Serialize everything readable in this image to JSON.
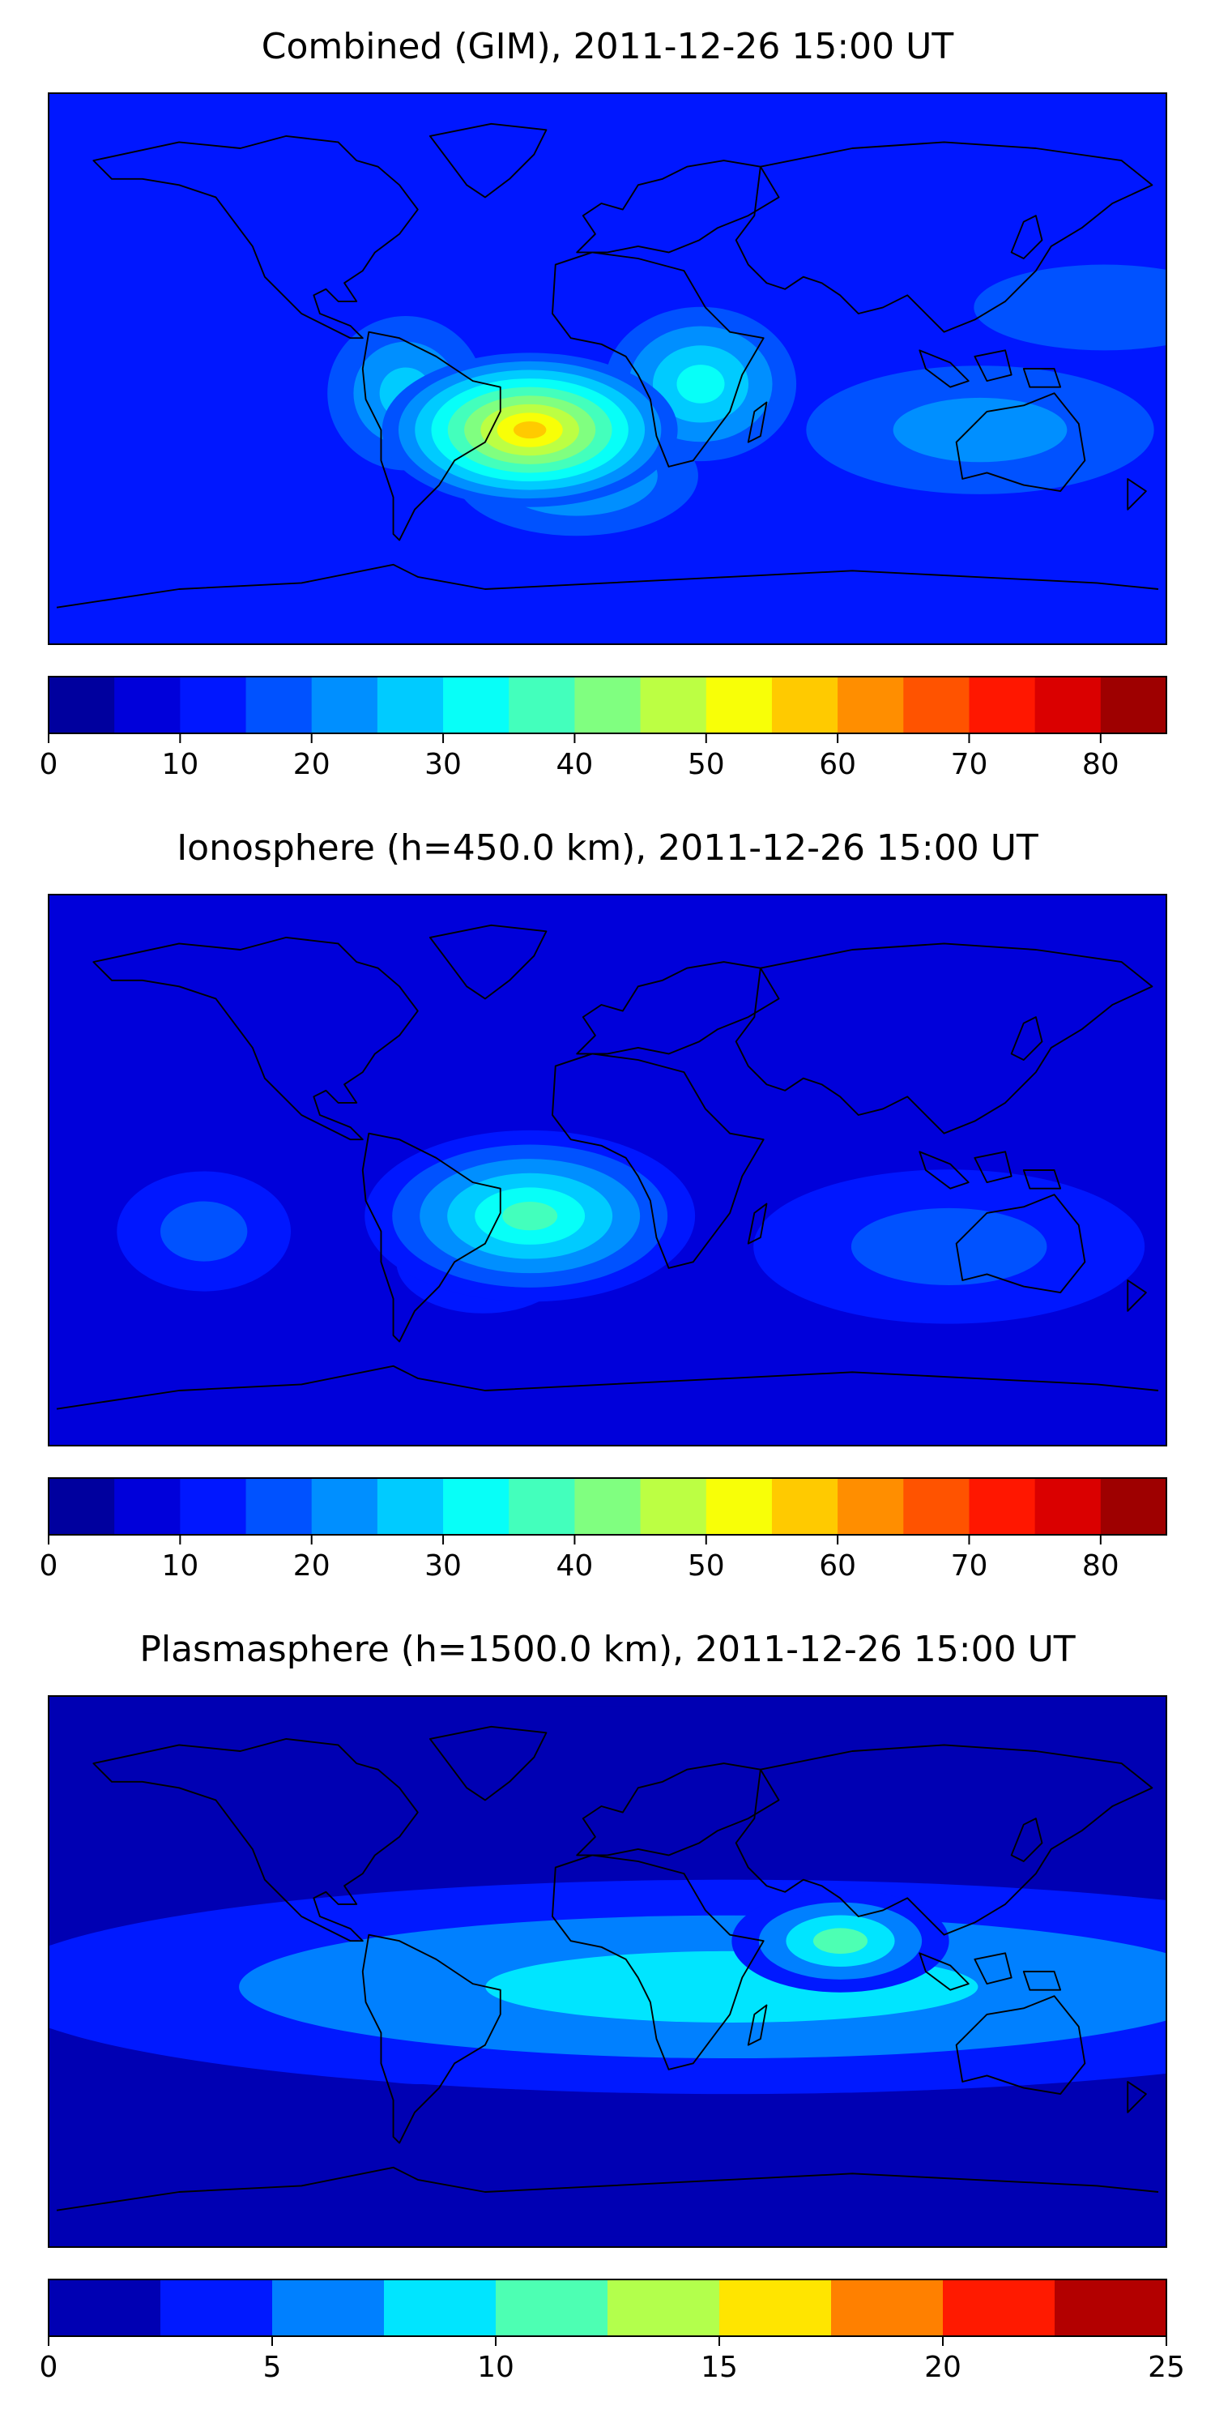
{
  "chart_data": [
    {
      "type": "heatmap",
      "title": "Combined (GIM), 2011-12-26 15:00 UT",
      "map": "world",
      "colormap": "jet",
      "colorbar": {
        "min": 0,
        "max": 85,
        "step": 5,
        "tick_labels": [
          "0",
          "10",
          "20",
          "30",
          "40",
          "50",
          "60",
          "70",
          "80"
        ]
      },
      "features": [
        {
          "lon": -25,
          "lat": -20,
          "sx": 34,
          "sy": 18,
          "value": 46
        },
        {
          "lon": -10,
          "lat": -35,
          "sx": 28,
          "sy": 14,
          "value": 14
        },
        {
          "lon": -65,
          "lat": -8,
          "sx": 18,
          "sy": 18,
          "value": 14
        },
        {
          "lon": 30,
          "lat": -5,
          "sx": 22,
          "sy": 18,
          "value": 18
        },
        {
          "lon": 120,
          "lat": -20,
          "sx": 40,
          "sy": 15,
          "value": 8
        },
        {
          "lon": 160,
          "lat": 20,
          "sx": 30,
          "sy": 10,
          "value": 6
        }
      ],
      "background_value": 11
    },
    {
      "type": "heatmap",
      "title": "Ionosphere  (h=450.0 km), 2011-12-26 15:00 UT",
      "map": "world",
      "colormap": "jet",
      "colorbar": {
        "min": 0,
        "max": 85,
        "step": 5,
        "tick_labels": [
          "0",
          "10",
          "20",
          "30",
          "40",
          "50",
          "60",
          "70",
          "80"
        ]
      },
      "features": [
        {
          "lon": -25,
          "lat": -15,
          "sx": 38,
          "sy": 20,
          "value": 30
        },
        {
          "lon": -5,
          "lat": -20,
          "sx": 14,
          "sy": 10,
          "value": 14
        },
        {
          "lon": -40,
          "lat": -30,
          "sx": 20,
          "sy": 12,
          "value": 6
        },
        {
          "lon": 110,
          "lat": -25,
          "sx": 45,
          "sy": 18,
          "value": 10
        },
        {
          "lon": -130,
          "lat": -20,
          "sx": 20,
          "sy": 14,
          "value": 8
        }
      ],
      "background_value": 7
    },
    {
      "type": "heatmap",
      "title": "Plasmasphere (h=1500.0 km), 2011-12-26 15:00 UT",
      "map": "world",
      "colormap": "jet",
      "colorbar": {
        "min": 0,
        "max": 25,
        "step": 2.5,
        "tick_labels": [
          "0",
          "5",
          "10",
          "15",
          "20",
          "25"
        ]
      },
      "features": [
        {
          "lon": 40,
          "lat": -5,
          "sx": 170,
          "sy": 25,
          "value": 8
        },
        {
          "lon": 75,
          "lat": 10,
          "sx": 25,
          "sy": 12,
          "value": 11
        },
        {
          "lon": -60,
          "lat": -20,
          "sx": 25,
          "sy": 12,
          "value": 5
        },
        {
          "lon": -15,
          "lat": -15,
          "sx": 15,
          "sy": 10,
          "value": 4
        },
        {
          "lon": 0,
          "lat": 70,
          "sx": 200,
          "sy": 12,
          "value": -4
        },
        {
          "lon": 0,
          "lat": -70,
          "sx": 200,
          "sy": 12,
          "value": -3
        }
      ],
      "background_value": 2
    }
  ]
}
